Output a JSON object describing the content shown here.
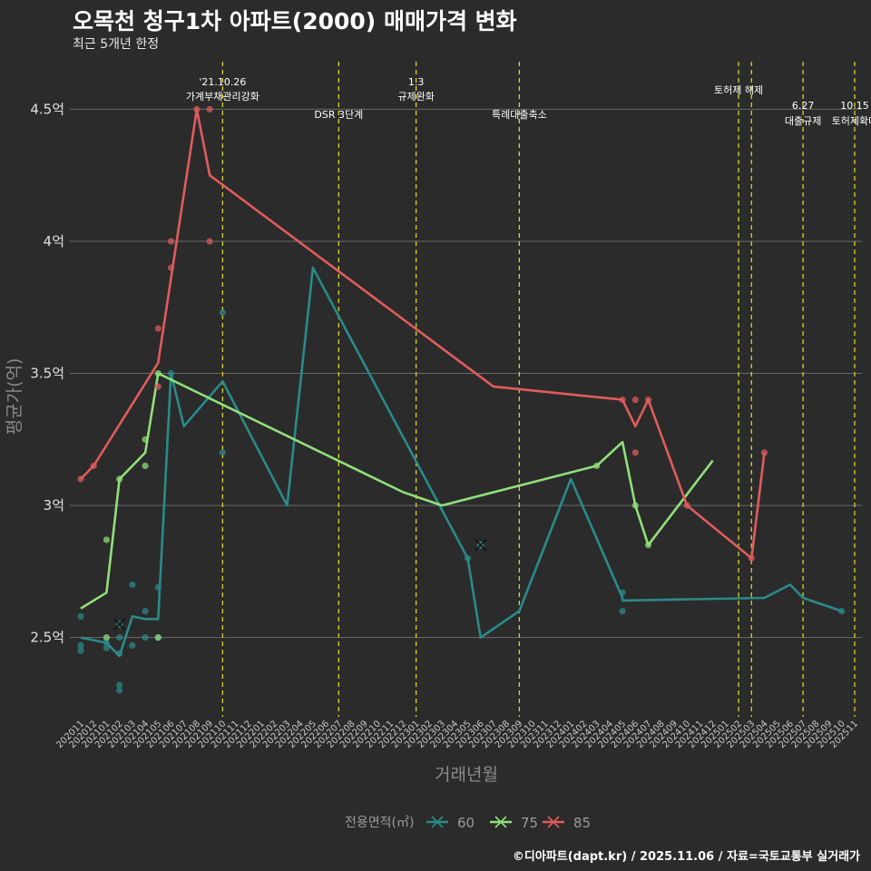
{
  "chart_data": {
    "type": "line",
    "title": "오목천 청구1차 아파트(2000) 매매가격 변화",
    "subtitle": "최근 5개년 한정",
    "xlabel": "거래년월",
    "ylabel": "평균가(억)",
    "ylim": [
      2.2,
      4.68
    ],
    "yticks": [
      {
        "value": 2.5,
        "label": "2.5억"
      },
      {
        "value": 3.0,
        "label": "3억"
      },
      {
        "value": 3.5,
        "label": "3.5억"
      },
      {
        "value": 4.0,
        "label": "4억"
      },
      {
        "value": 4.5,
        "label": "4.5억"
      }
    ],
    "categories": [
      "202011",
      "202012",
      "202101",
      "202102",
      "202103",
      "202104",
      "202105",
      "202106",
      "202107",
      "202108",
      "202109",
      "202110",
      "202111",
      "202112",
      "202201",
      "202202",
      "202203",
      "202204",
      "202205",
      "202206",
      "202207",
      "202208",
      "202209",
      "202210",
      "202211",
      "202212",
      "202301",
      "202302",
      "202303",
      "202304",
      "202305",
      "202306",
      "202307",
      "202308",
      "202309",
      "202310",
      "202311",
      "202312",
      "202401",
      "202402",
      "202403",
      "202404",
      "202405",
      "202406",
      "202407",
      "202408",
      "202409",
      "202410",
      "202411",
      "202412",
      "202501",
      "202502",
      "202503",
      "202504",
      "202505",
      "202506",
      "202507",
      "202508",
      "202509",
      "202510",
      "202511"
    ],
    "legend_title": "전용면적(㎡)",
    "series": [
      {
        "name": "60",
        "color": "#2b8a8a",
        "line": [
          [
            0,
            2.5
          ],
          [
            2,
            2.48
          ],
          [
            3,
            2.43
          ],
          [
            4,
            2.58
          ],
          [
            5,
            2.57
          ],
          [
            6,
            2.57
          ],
          [
            7,
            3.5
          ],
          [
            8,
            3.3
          ],
          [
            11,
            3.47
          ],
          [
            16,
            3.0
          ],
          [
            18,
            3.9
          ],
          [
            30,
            2.8
          ],
          [
            31,
            2.5
          ],
          [
            34,
            2.6
          ],
          [
            38,
            3.1
          ],
          [
            42,
            2.65
          ],
          [
            42,
            2.64
          ],
          [
            53,
            2.65
          ],
          [
            55,
            2.7
          ],
          [
            56,
            2.65
          ],
          [
            59,
            2.6
          ]
        ],
        "points": [
          [
            0,
            2.58
          ],
          [
            0,
            2.47
          ],
          [
            0,
            2.45
          ],
          [
            2,
            2.48
          ],
          [
            2,
            2.46
          ],
          [
            3,
            2.5
          ],
          [
            3,
            2.44
          ],
          [
            3,
            2.32
          ],
          [
            3,
            2.3
          ],
          [
            4,
            2.7
          ],
          [
            4,
            2.47
          ],
          [
            5,
            2.6
          ],
          [
            5,
            2.5
          ],
          [
            6,
            2.69
          ],
          [
            6,
            2.5
          ],
          [
            7,
            3.5
          ],
          [
            11,
            3.73
          ],
          [
            11,
            3.2
          ],
          [
            30,
            2.8
          ],
          [
            31,
            2.85
          ],
          [
            42,
            2.67
          ],
          [
            42,
            2.6
          ],
          [
            59,
            2.6
          ]
        ],
        "cross_points": [
          [
            3,
            2.55
          ],
          [
            31,
            2.85
          ]
        ]
      },
      {
        "name": "75",
        "color": "#90e07a",
        "line": [
          [
            0,
            2.61
          ],
          [
            2,
            2.67
          ],
          [
            3,
            3.1
          ],
          [
            5,
            3.2
          ],
          [
            6,
            3.5
          ],
          [
            25,
            3.05
          ],
          [
            28,
            3.0
          ],
          [
            40,
            3.15
          ],
          [
            42,
            3.24
          ],
          [
            43,
            3.0
          ],
          [
            44,
            2.85
          ],
          [
            49,
            3.17
          ]
        ],
        "points": [
          [
            2,
            2.87
          ],
          [
            2,
            2.5
          ],
          [
            3,
            3.1
          ],
          [
            5,
            3.25
          ],
          [
            5,
            3.15
          ],
          [
            6,
            3.5
          ],
          [
            6,
            2.5
          ],
          [
            40,
            3.15
          ],
          [
            43,
            3.0
          ],
          [
            44,
            2.85
          ]
        ]
      },
      {
        "name": "85",
        "color": "#e05c5c",
        "line": [
          [
            0,
            3.1
          ],
          [
            1,
            3.15
          ],
          [
            6,
            3.54
          ],
          [
            9,
            4.5
          ],
          [
            10,
            4.25
          ],
          [
            32,
            3.45
          ],
          [
            42,
            3.4
          ],
          [
            43,
            3.3
          ],
          [
            44,
            3.4
          ],
          [
            47,
            3.0
          ],
          [
            52,
            2.8
          ],
          [
            53,
            3.2
          ]
        ],
        "points": [
          [
            0,
            3.1
          ],
          [
            1,
            3.15
          ],
          [
            6,
            3.67
          ],
          [
            6,
            3.45
          ],
          [
            7,
            4.0
          ],
          [
            7,
            3.9
          ],
          [
            9,
            4.5
          ],
          [
            10,
            4.5
          ],
          [
            10,
            4.0
          ],
          [
            42,
            3.4
          ],
          [
            43,
            3.4
          ],
          [
            43,
            3.2
          ],
          [
            44,
            3.4
          ],
          [
            47,
            3.0
          ],
          [
            52,
            2.8
          ],
          [
            53,
            3.2
          ]
        ]
      }
    ],
    "events": [
      {
        "x": 11,
        "lines": [
          "'21.10.26",
          "가계부채관리강화"
        ],
        "row": 0
      },
      {
        "x": 20,
        "lines": [
          "DSR 3단계"
        ],
        "row": 2
      },
      {
        "x": 26,
        "lines": [
          "1.3",
          "규제완화"
        ],
        "row": 0
      },
      {
        "x": 34,
        "lines": [
          "특례대출축소"
        ],
        "row": 2
      },
      {
        "x": 51,
        "lines": [
          "토허제 해제"
        ],
        "row": 1
      },
      {
        "x": 52,
        "lines": [],
        "row": 1
      },
      {
        "x": 56,
        "lines": [
          "6.27",
          "대출규제"
        ],
        "row": 3
      },
      {
        "x": 60,
        "lines": [
          "10.15",
          "토허제확대"
        ],
        "row": 3
      }
    ]
  },
  "caption": "©디아파트(dapt.kr) / 2025.11.06 / 자료=국토교통부 실거래가"
}
